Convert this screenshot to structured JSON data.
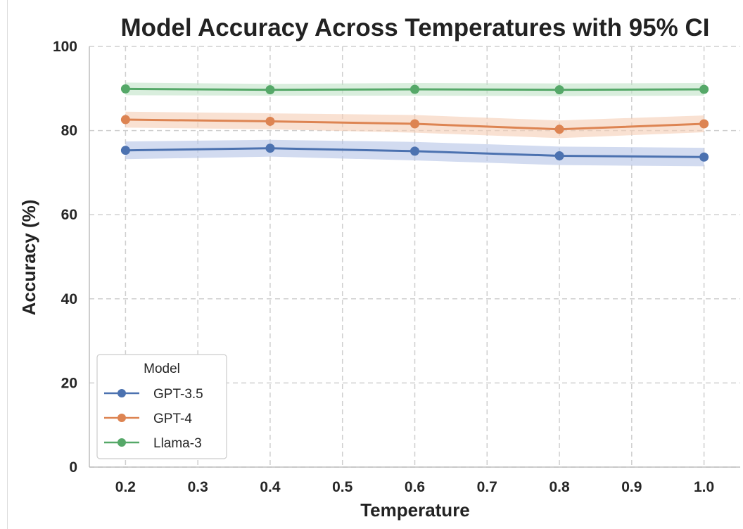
{
  "chart_data": {
    "type": "line",
    "title": "Model Accuracy Across Temperatures with 95% CI",
    "xlabel": "Temperature",
    "ylabel": "Accuracy (%)",
    "xlim": [
      0.15,
      1.05
    ],
    "ylim": [
      0,
      100
    ],
    "x_ticks": [
      0.2,
      0.3,
      0.4,
      0.5,
      0.6,
      0.7,
      0.8,
      0.9,
      1.0
    ],
    "x_tick_labels": [
      "0.2",
      "0.3",
      "0.4",
      "0.5",
      "0.6",
      "0.7",
      "0.8",
      "0.9",
      "1.0"
    ],
    "y_ticks": [
      0,
      20,
      40,
      60,
      80,
      100
    ],
    "y_tick_labels": [
      "0",
      "20",
      "40",
      "60",
      "80",
      "100"
    ],
    "grid": true,
    "grid_style": "dashed",
    "legend": {
      "title": "Model",
      "position": "bottom-left"
    },
    "x": [
      0.2,
      0.4,
      0.6,
      0.8,
      1.0
    ],
    "series": [
      {
        "name": "GPT-3.5",
        "color": "#4c72b0",
        "band_color": "#b4c3e6",
        "values": [
          75.3,
          75.8,
          75.1,
          74.0,
          73.7
        ],
        "ci_low": [
          73.2,
          73.8,
          72.9,
          71.8,
          71.5
        ],
        "ci_high": [
          77.4,
          77.8,
          77.3,
          76.2,
          75.9
        ]
      },
      {
        "name": "GPT-4",
        "color": "#dd8452",
        "band_color": "#f5cdb4",
        "values": [
          82.6,
          82.2,
          81.6,
          80.3,
          81.6
        ],
        "ci_low": [
          80.7,
          80.3,
          79.5,
          78.2,
          79.6
        ],
        "ci_high": [
          84.5,
          84.1,
          83.7,
          82.4,
          83.6
        ]
      },
      {
        "name": "Llama-3",
        "color": "#55a868",
        "band_color": "#bfe3c6",
        "values": [
          89.9,
          89.7,
          89.8,
          89.7,
          89.8
        ],
        "ci_low": [
          88.4,
          88.3,
          88.3,
          88.2,
          88.3
        ],
        "ci_high": [
          91.4,
          91.1,
          91.3,
          91.2,
          91.3
        ]
      }
    ]
  }
}
